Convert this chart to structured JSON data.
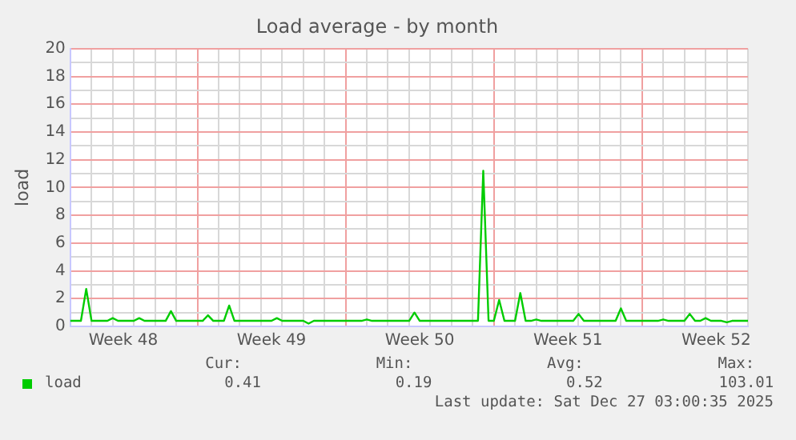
{
  "chart_data": {
    "type": "line",
    "title": "Load average - by month",
    "ylabel": "load",
    "categories": [
      null,
      null,
      null,
      null,
      null,
      null,
      null,
      null,
      null,
      null,
      "Week 48",
      null,
      null,
      null,
      null,
      null,
      null,
      null,
      null,
      null,
      null,
      null,
      null,
      null,
      null,
      null,
      null,
      null,
      null,
      null,
      null,
      null,
      null,
      null,
      null,
      null,
      null,
      null,
      "Week 49",
      null,
      null,
      null,
      null,
      null,
      null,
      null,
      null,
      null,
      null,
      null,
      null,
      null,
      null,
      null,
      null,
      null,
      null,
      null,
      null,
      null,
      null,
      null,
      null,
      null,
      null,
      null,
      "Week 50",
      null,
      null,
      null,
      null,
      null,
      null,
      null,
      null,
      null,
      null,
      null,
      null,
      null,
      null,
      null,
      null,
      null,
      null,
      null,
      null,
      null,
      null,
      null,
      null,
      null,
      null,
      null,
      "Week 51",
      null,
      null,
      null,
      null,
      null,
      null,
      null,
      null,
      null,
      null,
      null,
      null,
      null,
      null,
      null,
      null,
      null,
      null,
      null,
      null,
      null,
      null,
      null,
      null,
      null,
      null,
      null,
      "Week 52",
      null,
      null,
      null,
      null,
      null,
      null
    ],
    "series": [
      {
        "name": "load",
        "color": "#00cc00",
        "values": [
          0.4,
          0.4,
          0.4,
          2.7,
          0.4,
          0.4,
          0.4,
          0.4,
          0.6,
          0.4,
          0.4,
          0.4,
          0.4,
          0.6,
          0.4,
          0.4,
          0.4,
          0.4,
          0.4,
          1.1,
          0.4,
          0.4,
          0.4,
          0.4,
          0.4,
          0.4,
          0.8,
          0.4,
          0.4,
          0.4,
          1.5,
          0.4,
          0.4,
          0.4,
          0.4,
          0.4,
          0.4,
          0.4,
          0.4,
          0.6,
          0.4,
          0.4,
          0.4,
          0.4,
          0.4,
          0.2,
          0.4,
          0.4,
          0.4,
          0.4,
          0.4,
          0.4,
          0.4,
          0.4,
          0.4,
          0.4,
          0.5,
          0.4,
          0.4,
          0.4,
          0.4,
          0.4,
          0.4,
          0.4,
          0.4,
          1.0,
          0.4,
          0.4,
          0.4,
          0.4,
          0.4,
          0.4,
          0.4,
          0.4,
          0.4,
          0.4,
          0.4,
          0.4,
          11.2,
          0.4,
          0.4,
          1.9,
          0.4,
          0.4,
          0.4,
          2.4,
          0.4,
          0.4,
          0.5,
          0.4,
          0.4,
          0.4,
          0.4,
          0.4,
          0.4,
          0.4,
          0.9,
          0.4,
          0.4,
          0.4,
          0.4,
          0.4,
          0.4,
          0.4,
          1.3,
          0.4,
          0.4,
          0.4,
          0.4,
          0.4,
          0.4,
          0.4,
          0.5,
          0.4,
          0.4,
          0.4,
          0.4,
          0.9,
          0.4,
          0.4,
          0.6,
          0.4,
          0.4,
          0.4,
          0.3,
          0.4,
          0.4,
          0.4,
          0.4
        ]
      }
    ],
    "ylim": [
      0,
      20
    ],
    "yticks": [
      0,
      {
        "value": 1,
        "label": null
      },
      2,
      {
        "value": 3,
        "label": null
      },
      4,
      {
        "value": 5,
        "label": null
      },
      6,
      {
        "value": 7,
        "label": null
      },
      8,
      {
        "value": 9,
        "label": null
      },
      10,
      {
        "value": 11,
        "label": null
      },
      12,
      {
        "value": 13,
        "label": null
      },
      14,
      {
        "value": 15,
        "label": null
      },
      16,
      {
        "value": 17,
        "label": null
      },
      18,
      {
        "value": 19,
        "label": null
      },
      20
    ],
    "grid": true,
    "legend": "bottom left",
    "marker": "none",
    "line_style": "solid",
    "annotations": [
      "Cur:",
      "Min:",
      "Avg:",
      "Max:",
      "0.41",
      "0.19",
      "0.52",
      "103.01",
      "Last update: Sat Dec 27 03:00:35 2025"
    ]
  }
}
